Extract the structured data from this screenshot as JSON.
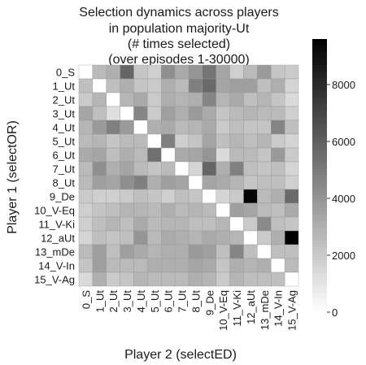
{
  "chart_data": {
    "type": "heatmap",
    "title_lines": [
      "Selection dynamics across players",
      "in population majority-Ut",
      "(# times selected)",
      "(over episodes 1-30000)"
    ],
    "xlabel": "Player 2 (selectED)",
    "ylabel": "Player 1 (selectOR)",
    "x_categories": [
      "0_S",
      "1_Ut",
      "2_Ut",
      "3_Ut",
      "4_Ut",
      "5_Ut",
      "6_Ut",
      "7_Ut",
      "8_Ut",
      "9_De",
      "10_V-Eq",
      "11_V-Ki",
      "12_aUt",
      "13_mDe",
      "14_V-In",
      "15_V-Ag"
    ],
    "y_categories": [
      "0_S",
      "1_Ut",
      "2_Ut",
      "3_Ut",
      "4_Ut",
      "5_Ut",
      "6_Ut",
      "7_Ut",
      "8_Ut",
      "9_De",
      "10_V-Eq",
      "11_V-Ki",
      "12_aUt",
      "13_mDe",
      "14_V-In",
      "15_V-Ag"
    ],
    "values": [
      [
        0,
        2600,
        3000,
        5800,
        2200,
        1800,
        4200,
        3200,
        4000,
        5200,
        3400,
        1800,
        2600,
        3800,
        2200,
        2000
      ],
      [
        2400,
        0,
        2400,
        3000,
        2200,
        2000,
        3000,
        2600,
        4800,
        5600,
        3400,
        3600,
        3600,
        2400,
        3000,
        1600
      ],
      [
        2000,
        2800,
        0,
        2800,
        3200,
        2000,
        3000,
        2800,
        3000,
        4600,
        2800,
        3200,
        2400,
        2800,
        2200,
        1400
      ],
      [
        3400,
        2400,
        1200,
        0,
        4600,
        2000,
        3600,
        3000,
        3800,
        3200,
        2200,
        2600,
        2800,
        2600,
        2600,
        1800
      ],
      [
        2800,
        3800,
        4800,
        3800,
        0,
        3000,
        3200,
        2600,
        2800,
        3200,
        2000,
        2400,
        2200,
        2200,
        4600,
        2400
      ],
      [
        2600,
        2800,
        2200,
        2600,
        2600,
        0,
        4800,
        1800,
        2200,
        3400,
        2400,
        2800,
        2400,
        2800,
        2000,
        1600
      ],
      [
        3200,
        3400,
        2400,
        3000,
        2600,
        5400,
        0,
        3200,
        3400,
        4000,
        1400,
        2600,
        2600,
        2200,
        3800,
        2000
      ],
      [
        2600,
        4200,
        3000,
        3400,
        2600,
        2200,
        2600,
        0,
        1600,
        5800,
        3000,
        4800,
        2400,
        2200,
        2400,
        1600
      ],
      [
        2600,
        3600,
        3400,
        4200,
        4800,
        3000,
        3600,
        3400,
        0,
        3400,
        3200,
        2800,
        2200,
        2400,
        2400,
        1800
      ],
      [
        2000,
        1800,
        1800,
        2000,
        2400,
        2200,
        1800,
        2400,
        2200,
        0,
        1600,
        2000,
        9400,
        2600,
        3000,
        5600
      ],
      [
        1800,
        2200,
        2400,
        2800,
        2800,
        2600,
        3000,
        2600,
        2800,
        2600,
        0,
        3600,
        3400,
        2600,
        2400,
        3200
      ],
      [
        1800,
        2400,
        2800,
        2400,
        3200,
        2600,
        2800,
        2800,
        2400,
        2400,
        2800,
        0,
        2000,
        4400,
        2400,
        2200
      ],
      [
        1600,
        2400,
        2200,
        2400,
        4000,
        2600,
        3200,
        3000,
        2800,
        3200,
        3000,
        2800,
        0,
        2000,
        3000,
        9600
      ],
      [
        2600,
        3600,
        2400,
        3600,
        3200,
        2800,
        3000,
        3000,
        3800,
        3600,
        2400,
        4600,
        2400,
        0,
        2400,
        2400
      ],
      [
        2200,
        3600,
        2600,
        2600,
        2600,
        3000,
        3000,
        3000,
        3400,
        3200,
        2200,
        3000,
        2800,
        3000,
        0,
        2600
      ],
      [
        1400,
        3000,
        2000,
        2200,
        2800,
        2600,
        2600,
        2600,
        3000,
        2800,
        2000,
        2800,
        2400,
        2400,
        2400,
        0
      ]
    ],
    "colorbar": {
      "min": 0,
      "max": 9600,
      "ticks": [
        0,
        2000,
        4000,
        6000,
        8000
      ],
      "tick_labels": [
        "0",
        "2000",
        "4000",
        "6000",
        "8000"
      ],
      "colormap": "white-to-black"
    },
    "colors": {
      "low": "#ffffff",
      "high": "#000000"
    }
  }
}
